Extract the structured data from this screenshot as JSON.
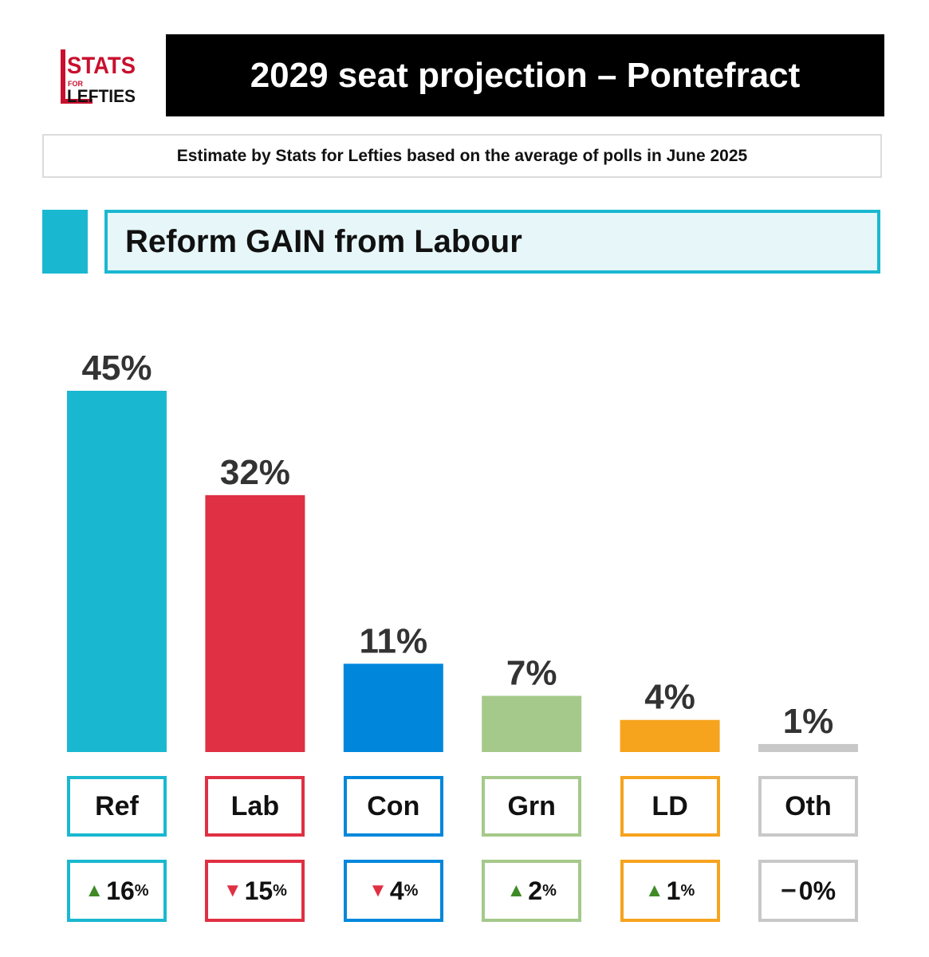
{
  "logo": {
    "line1": "STATS",
    "line2": "FOR",
    "line3": "LEFTIES",
    "color": "#c8102e"
  },
  "header": {
    "title": "2029 seat projection – Pontefract",
    "subtitle": "Estimate by Stats for Lefties based on the average of polls in June 2025",
    "result": "Reform GAIN from Labour",
    "result_color": "#1ab8d0"
  },
  "chart_data": {
    "type": "bar",
    "categories": [
      "Ref",
      "Lab",
      "Con",
      "Grn",
      "LD",
      "Oth"
    ],
    "values": [
      45,
      32,
      11,
      7,
      4,
      1
    ],
    "value_labels": [
      "45%",
      "32%",
      "11%",
      "7%",
      "4%",
      "1%"
    ],
    "colors": [
      "#1ab8d0",
      "#e03043",
      "#0087dc",
      "#a5c98a",
      "#f6a31e",
      "#c8c8c8"
    ],
    "changes": [
      {
        "direction": "up",
        "value": "16",
        "unit": "%"
      },
      {
        "direction": "down",
        "value": "15",
        "unit": "%"
      },
      {
        "direction": "down",
        "value": "4",
        "unit": "%"
      },
      {
        "direction": "up",
        "value": "2",
        "unit": "%"
      },
      {
        "direction": "up",
        "value": "1",
        "unit": "%"
      },
      {
        "direction": "none",
        "value": "0",
        "unit": "%"
      }
    ],
    "arrow_colors": {
      "up": "#3f8a27",
      "down": "#e03043",
      "none": "#222222"
    },
    "ylim": [
      0,
      45
    ]
  }
}
